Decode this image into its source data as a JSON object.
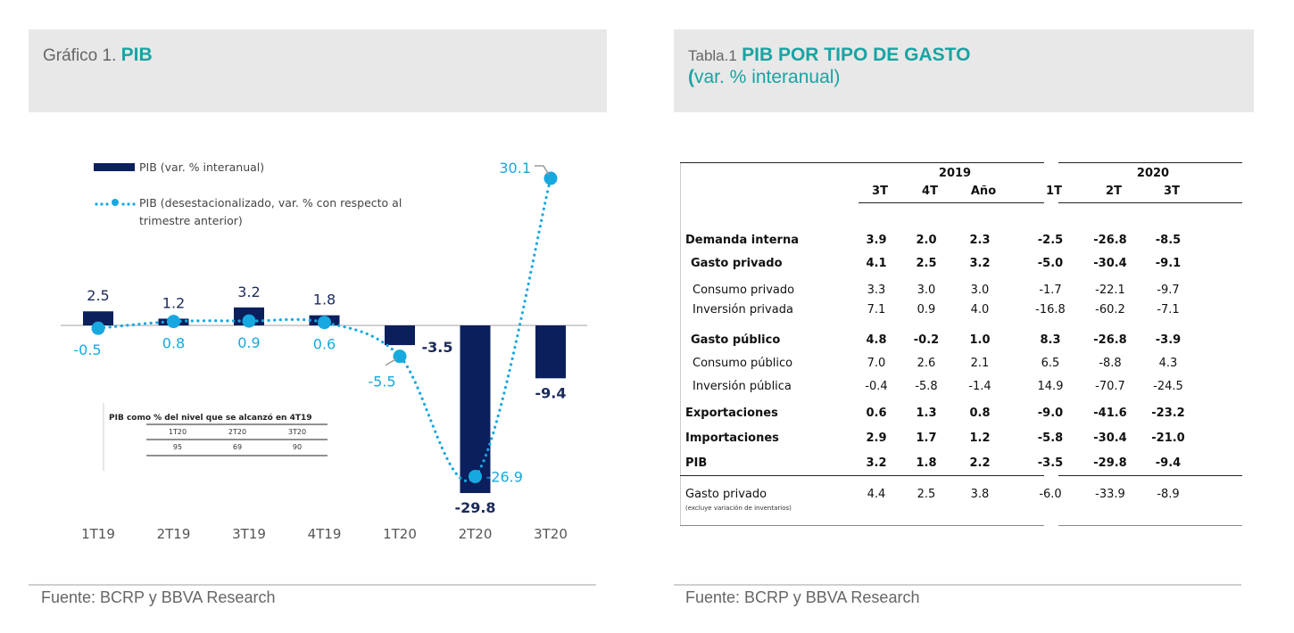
{
  "left_panel": {
    "header_prefix": "Gráfico 1.",
    "header_title": "PIB",
    "source": "Fuente: BCRP y BBVA Research"
  },
  "right_panel": {
    "header_prefix": "Tabla.1",
    "header_title": "PIB POR TIPO DE GASTO",
    "header_subtitle_paren": "(",
    "header_subtitle": "var. % interanual)",
    "source": "Fuente: BCRP y BBVA Research"
  },
  "colors": {
    "bar": "#0b1f5c",
    "line": "#17a8e0",
    "accent": "#1aa3a3",
    "header_bg": "#e8e8e8"
  },
  "chart_data": {
    "type": "bar",
    "title": "PIB",
    "xlabel": "",
    "ylabel": "",
    "categories": [
      "1T19",
      "2T19",
      "3T19",
      "4T19",
      "1T20",
      "2T20",
      "3T20"
    ],
    "series": [
      {
        "name": "PIB (var. % interanual)",
        "type": "bar",
        "values": [
          2.5,
          1.2,
          3.2,
          1.8,
          -3.5,
          -29.8,
          -9.4
        ],
        "labels": [
          "2.5",
          "1.2",
          "3.2",
          "1.8",
          "-3.5",
          "-29.8",
          "-9.4"
        ]
      },
      {
        "name": "PIB (desestacionalizado, var. % con respecto al trimestre anterior)",
        "type": "line",
        "style": "dotted with markers",
        "values": [
          -0.5,
          0.8,
          0.9,
          0.6,
          -5.5,
          -26.9,
          30.1
        ],
        "labels": [
          "-0.5",
          "0.8",
          "0.9",
          "0.6",
          "-5.5",
          "-26.9",
          "30.1"
        ]
      }
    ],
    "legend": {
      "position": "top-left",
      "entries": [
        "PIB (var. % interanual)",
        "PIB (desestacionalizado, var. % con respecto al",
        "trimestre anterior)"
      ]
    },
    "grid": false,
    "y_axis_visible": false,
    "inset_table": {
      "title": "PIB como % del nivel que se alcanzó en 4T19",
      "columns": [
        "1T20",
        "2T20",
        "3T20"
      ],
      "values": [
        "95",
        "69",
        "90"
      ]
    }
  },
  "table": {
    "year_headers": [
      "2019",
      "2020"
    ],
    "column_headers": [
      "3T",
      "4T",
      "Año",
      "1T",
      "2T",
      "3T"
    ],
    "rows": [
      {
        "label": "Demanda interna",
        "bold": true,
        "values": [
          "3.9",
          "2.0",
          "2.3",
          "-2.5",
          "-26.8",
          "-8.5"
        ]
      },
      {
        "label": "Gasto privado",
        "bold": true,
        "values": [
          "4.1",
          "2.5",
          "3.2",
          "-5.0",
          "-30.4",
          "-9.1"
        ]
      },
      {
        "label": "Consumo privado",
        "bold": false,
        "values": [
          "3.3",
          "3.0",
          "3.0",
          "-1.7",
          "-22.1",
          "-9.7"
        ]
      },
      {
        "label": "Inversión privada",
        "bold": false,
        "values": [
          "7.1",
          "0.9",
          "4.0",
          "-16.8",
          "-60.2",
          "-7.1"
        ]
      },
      {
        "label": "Gasto público",
        "bold": true,
        "values": [
          "4.8",
          "-0.2",
          "1.0",
          "8.3",
          "-26.8",
          "-3.9"
        ]
      },
      {
        "label": "Consumo público",
        "bold": false,
        "values": [
          "7.0",
          "2.6",
          "2.1",
          "6.5",
          "-8.8",
          "4.3"
        ]
      },
      {
        "label": "Inversión pública",
        "bold": false,
        "values": [
          "-0.4",
          "-5.8",
          "-1.4",
          "14.9",
          "-70.7",
          "-24.5"
        ]
      },
      {
        "label": "Exportaciones",
        "bold": true,
        "values": [
          "0.6",
          "1.3",
          "0.8",
          "-9.0",
          "-41.6",
          "-23.2"
        ]
      },
      {
        "label": "Importaciones",
        "bold": true,
        "values": [
          "2.9",
          "1.7",
          "1.2",
          "-5.8",
          "-30.4",
          "-21.0"
        ]
      },
      {
        "label": "PIB",
        "bold": true,
        "values": [
          "3.2",
          "1.8",
          "2.2",
          "-3.5",
          "-29.8",
          "-9.4"
        ]
      },
      {
        "label": "Gasto privado",
        "bold": false,
        "note": "(excluye variación de inventarios)",
        "values": [
          "4.4",
          "2.5",
          "3.8",
          "-6.0",
          "-33.9",
          "-8.9"
        ]
      }
    ]
  }
}
